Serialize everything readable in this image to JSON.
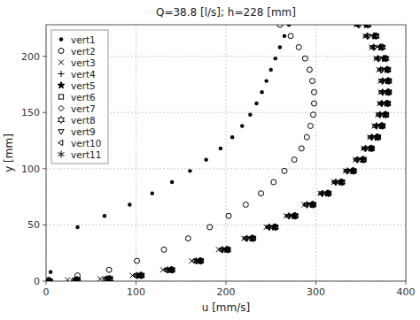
{
  "chart_data": {
    "type": "scatter",
    "title": "Q=38.8 [l/s]; h=228 [mm]",
    "x_label": "u [mm/s]",
    "y_label": "y [mm]",
    "xlim": [
      0,
      400
    ],
    "ylim": [
      0,
      228
    ],
    "xticks": [
      0,
      100,
      200,
      300,
      400
    ],
    "yticks": [
      0,
      50,
      100,
      150,
      200
    ],
    "grid": true,
    "legend": "upper-left",
    "color": "#000000",
    "series": [
      {
        "name": "vert1",
        "marker": "dot",
        "x": [
          270,
          265,
          260,
          255,
          250,
          245,
          240,
          234,
          227,
          218,
          207,
          194,
          178,
          160,
          140,
          118,
          93,
          65,
          35,
          5
        ],
        "values": [
          228,
          218,
          208,
          198,
          188,
          178,
          168,
          158,
          148,
          138,
          128,
          118,
          108,
          98,
          88,
          78,
          68,
          58,
          48,
          8
        ]
      },
      {
        "name": "vert2",
        "marker": "circle-open",
        "x": [
          260,
          272,
          281,
          288,
          293,
          296,
          298,
          298,
          297,
          294,
          290,
          284,
          276,
          265,
          253,
          239,
          222,
          203,
          182,
          158,
          131,
          101,
          70,
          35,
          3
        ],
        "values": [
          228,
          218,
          208,
          198,
          188,
          178,
          168,
          158,
          148,
          138,
          128,
          118,
          108,
          98,
          88,
          78,
          68,
          58,
          48,
          38,
          28,
          18,
          10,
          5,
          1
        ]
      },
      {
        "name": "vert3",
        "marker": "x",
        "x": [
          345,
          355,
          362,
          367,
          370,
          372,
          372,
          371,
          369,
          365,
          360,
          353,
          344,
          333,
          320,
          305,
          287,
          267,
          245,
          220,
          192,
          162,
          130,
          96,
          60,
          24,
          3
        ],
        "values": [
          228,
          218,
          208,
          198,
          188,
          178,
          168,
          158,
          148,
          138,
          128,
          118,
          108,
          98,
          88,
          78,
          68,
          58,
          48,
          38,
          28,
          18,
          10,
          5,
          2,
          1,
          0
        ]
      },
      {
        "name": "vert4",
        "marker": "plus",
        "x": [
          355,
          364,
          371,
          375,
          378,
          379,
          379,
          378,
          376,
          372,
          367,
          360,
          351,
          340,
          327,
          312,
          295,
          275,
          253,
          228,
          201,
          171,
          139,
          105,
          70,
          34,
          4
        ],
        "values": [
          228,
          218,
          208,
          198,
          188,
          178,
          168,
          158,
          148,
          138,
          128,
          118,
          108,
          98,
          88,
          78,
          68,
          58,
          48,
          38,
          28,
          18,
          10,
          5,
          2,
          1,
          0
        ]
      },
      {
        "name": "vert5",
        "marker": "star",
        "x": [
          356,
          365,
          372,
          376,
          379,
          380,
          380,
          379,
          377,
          373,
          368,
          361,
          352,
          341,
          328,
          313,
          296,
          276,
          254,
          229,
          201,
          171,
          139,
          105,
          70,
          34,
          4
        ],
        "values": [
          228,
          218,
          208,
          198,
          188,
          178,
          168,
          158,
          148,
          138,
          128,
          118,
          108,
          98,
          88,
          78,
          68,
          58,
          48,
          38,
          28,
          18,
          10,
          5,
          2,
          1,
          0
        ]
      },
      {
        "name": "vert6",
        "marker": "square-open",
        "x": [
          358,
          367,
          373,
          377,
          380,
          381,
          381,
          380,
          378,
          374,
          369,
          362,
          353,
          342,
          329,
          314,
          297,
          277,
          255,
          230,
          202,
          172,
          140,
          106,
          71,
          35,
          4
        ],
        "values": [
          228,
          218,
          208,
          198,
          188,
          178,
          168,
          158,
          148,
          138,
          128,
          118,
          108,
          98,
          88,
          78,
          68,
          58,
          48,
          38,
          28,
          18,
          10,
          5,
          2,
          1,
          0
        ]
      },
      {
        "name": "vert7",
        "marker": "diamond-open",
        "x": [
          357,
          366,
          373,
          377,
          380,
          381,
          381,
          380,
          378,
          374,
          369,
          362,
          353,
          342,
          329,
          314,
          297,
          277,
          255,
          230,
          202,
          172,
          140,
          106,
          71,
          35,
          4
        ],
        "values": [
          228,
          218,
          208,
          198,
          188,
          178,
          168,
          158,
          148,
          138,
          128,
          118,
          108,
          98,
          88,
          78,
          68,
          58,
          48,
          38,
          28,
          18,
          10,
          5,
          2,
          1,
          0
        ]
      },
      {
        "name": "vert8",
        "marker": "star6-open",
        "x": [
          358,
          367,
          374,
          378,
          380,
          381,
          381,
          380,
          378,
          374,
          369,
          362,
          353,
          342,
          329,
          314,
          297,
          277,
          255,
          230,
          202,
          172,
          140,
          106,
          71,
          35,
          4
        ],
        "values": [
          228,
          218,
          208,
          198,
          188,
          178,
          168,
          158,
          148,
          138,
          128,
          118,
          108,
          98,
          88,
          78,
          68,
          58,
          48,
          38,
          28,
          18,
          10,
          5,
          2,
          1,
          0
        ]
      },
      {
        "name": "vert9",
        "marker": "triangle-down-open",
        "x": [
          348,
          358,
          365,
          370,
          373,
          374,
          374,
          373,
          371,
          367,
          362,
          355,
          346,
          335,
          322,
          307,
          290,
          270,
          248,
          223,
          196,
          167,
          135,
          101,
          67,
          32,
          3
        ],
        "values": [
          228,
          218,
          208,
          198,
          188,
          178,
          168,
          158,
          148,
          138,
          128,
          118,
          108,
          98,
          88,
          78,
          68,
          58,
          48,
          38,
          28,
          18,
          10,
          5,
          2,
          1,
          0
        ]
      },
      {
        "name": "vert10",
        "marker": "triangle-left-open",
        "x": [
          346,
          356,
          363,
          368,
          372,
          373,
          373,
          372,
          370,
          366,
          361,
          354,
          345,
          334,
          321,
          306,
          289,
          269,
          247,
          222,
          195,
          165,
          134,
          100,
          66,
          31,
          3
        ],
        "values": [
          228,
          218,
          208,
          198,
          188,
          178,
          168,
          158,
          148,
          138,
          128,
          118,
          108,
          98,
          88,
          78,
          68,
          58,
          48,
          38,
          28,
          18,
          10,
          5,
          2,
          1,
          0
        ]
      },
      {
        "name": "vert11",
        "marker": "asterisk6",
        "x": [
          347,
          357,
          364,
          369,
          372,
          374,
          374,
          373,
          371,
          367,
          362,
          355,
          346,
          335,
          322,
          307,
          290,
          270,
          248,
          223,
          196,
          167,
          135,
          101,
          67,
          32,
          3
        ],
        "values": [
          228,
          218,
          208,
          198,
          188,
          178,
          168,
          158,
          148,
          138,
          128,
          118,
          108,
          98,
          88,
          78,
          68,
          58,
          48,
          38,
          28,
          18,
          10,
          5,
          2,
          1,
          0
        ]
      }
    ]
  }
}
